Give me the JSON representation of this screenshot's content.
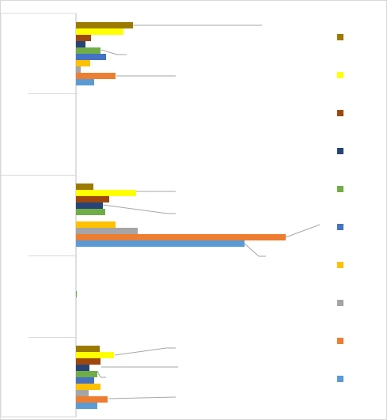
{
  "chart_data": {
    "type": "bar",
    "orientation": "horizontal",
    "title": "",
    "xlabel": "",
    "ylabel": "",
    "grid": false,
    "legend_position": "right",
    "categories": [
      "",
      "",
      "",
      "",
      ""
    ],
    "series": [
      {
        "color": "#9C7A00",
        "values": [
          72,
          0,
          22,
          0,
          30
        ]
      },
      {
        "color": "#FFFF00",
        "values": [
          60,
          0,
          76,
          0,
          48
        ]
      },
      {
        "color": "#9E480E",
        "values": [
          19,
          0,
          42,
          0,
          31
        ]
      },
      {
        "color": "#264478",
        "values": [
          12,
          0,
          34,
          0,
          17
        ]
      },
      {
        "color": "#70AD47",
        "values": [
          31,
          0,
          37,
          1,
          27
        ]
      },
      {
        "color": "#4472C4",
        "values": [
          38,
          0,
          0,
          0,
          23
        ]
      },
      {
        "color": "#FFC000",
        "values": [
          18,
          0,
          50,
          0,
          31
        ]
      },
      {
        "color": "#A5A5A5",
        "values": [
          6,
          0,
          78,
          0,
          16
        ]
      },
      {
        "color": "#ED7D31",
        "values": [
          50,
          0,
          265,
          0,
          40
        ]
      },
      {
        "color": "#5B9BD5",
        "values": [
          23,
          0,
          213,
          0,
          27
        ]
      }
    ],
    "annotations": [
      {
        "series": 0,
        "category": 0,
        "label": ""
      },
      {
        "series": 4,
        "category": 0,
        "label": ""
      },
      {
        "series": 8,
        "category": 0,
        "label": ""
      },
      {
        "series": 1,
        "category": 2,
        "label": ""
      },
      {
        "series": 3,
        "category": 2,
        "label": ""
      },
      {
        "series": 8,
        "category": 2,
        "label": ""
      },
      {
        "series": 9,
        "category": 2,
        "label": ""
      },
      {
        "series": 1,
        "category": 4,
        "label": ""
      },
      {
        "series": 2,
        "category": 4,
        "label": ""
      },
      {
        "series": 4,
        "category": 4,
        "label": ""
      },
      {
        "series": 8,
        "category": 4,
        "label": ""
      }
    ]
  }
}
